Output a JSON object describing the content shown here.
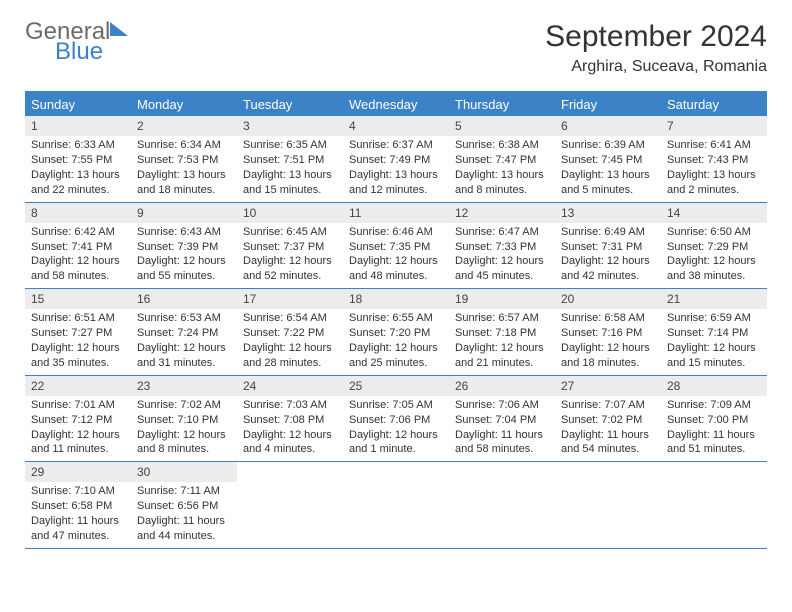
{
  "brand": {
    "general": "General",
    "blue": "Blue"
  },
  "title": "September 2024",
  "location": "Arghira, Suceava, Romania",
  "colors": {
    "accent": "#3b82c7",
    "daynum_bg": "#ececec",
    "text": "#333333",
    "bg": "#ffffff"
  },
  "dayHeaders": [
    "Sunday",
    "Monday",
    "Tuesday",
    "Wednesday",
    "Thursday",
    "Friday",
    "Saturday"
  ],
  "weeks": [
    [
      {
        "n": "1",
        "sr": "Sunrise: 6:33 AM",
        "ss": "Sunset: 7:55 PM",
        "d1": "Daylight: 13 hours",
        "d2": "and 22 minutes."
      },
      {
        "n": "2",
        "sr": "Sunrise: 6:34 AM",
        "ss": "Sunset: 7:53 PM",
        "d1": "Daylight: 13 hours",
        "d2": "and 18 minutes."
      },
      {
        "n": "3",
        "sr": "Sunrise: 6:35 AM",
        "ss": "Sunset: 7:51 PM",
        "d1": "Daylight: 13 hours",
        "d2": "and 15 minutes."
      },
      {
        "n": "4",
        "sr": "Sunrise: 6:37 AM",
        "ss": "Sunset: 7:49 PM",
        "d1": "Daylight: 13 hours",
        "d2": "and 12 minutes."
      },
      {
        "n": "5",
        "sr": "Sunrise: 6:38 AM",
        "ss": "Sunset: 7:47 PM",
        "d1": "Daylight: 13 hours",
        "d2": "and 8 minutes."
      },
      {
        "n": "6",
        "sr": "Sunrise: 6:39 AM",
        "ss": "Sunset: 7:45 PM",
        "d1": "Daylight: 13 hours",
        "d2": "and 5 minutes."
      },
      {
        "n": "7",
        "sr": "Sunrise: 6:41 AM",
        "ss": "Sunset: 7:43 PM",
        "d1": "Daylight: 13 hours",
        "d2": "and 2 minutes."
      }
    ],
    [
      {
        "n": "8",
        "sr": "Sunrise: 6:42 AM",
        "ss": "Sunset: 7:41 PM",
        "d1": "Daylight: 12 hours",
        "d2": "and 58 minutes."
      },
      {
        "n": "9",
        "sr": "Sunrise: 6:43 AM",
        "ss": "Sunset: 7:39 PM",
        "d1": "Daylight: 12 hours",
        "d2": "and 55 minutes."
      },
      {
        "n": "10",
        "sr": "Sunrise: 6:45 AM",
        "ss": "Sunset: 7:37 PM",
        "d1": "Daylight: 12 hours",
        "d2": "and 52 minutes."
      },
      {
        "n": "11",
        "sr": "Sunrise: 6:46 AM",
        "ss": "Sunset: 7:35 PM",
        "d1": "Daylight: 12 hours",
        "d2": "and 48 minutes."
      },
      {
        "n": "12",
        "sr": "Sunrise: 6:47 AM",
        "ss": "Sunset: 7:33 PM",
        "d1": "Daylight: 12 hours",
        "d2": "and 45 minutes."
      },
      {
        "n": "13",
        "sr": "Sunrise: 6:49 AM",
        "ss": "Sunset: 7:31 PM",
        "d1": "Daylight: 12 hours",
        "d2": "and 42 minutes."
      },
      {
        "n": "14",
        "sr": "Sunrise: 6:50 AM",
        "ss": "Sunset: 7:29 PM",
        "d1": "Daylight: 12 hours",
        "d2": "and 38 minutes."
      }
    ],
    [
      {
        "n": "15",
        "sr": "Sunrise: 6:51 AM",
        "ss": "Sunset: 7:27 PM",
        "d1": "Daylight: 12 hours",
        "d2": "and 35 minutes."
      },
      {
        "n": "16",
        "sr": "Sunrise: 6:53 AM",
        "ss": "Sunset: 7:24 PM",
        "d1": "Daylight: 12 hours",
        "d2": "and 31 minutes."
      },
      {
        "n": "17",
        "sr": "Sunrise: 6:54 AM",
        "ss": "Sunset: 7:22 PM",
        "d1": "Daylight: 12 hours",
        "d2": "and 28 minutes."
      },
      {
        "n": "18",
        "sr": "Sunrise: 6:55 AM",
        "ss": "Sunset: 7:20 PM",
        "d1": "Daylight: 12 hours",
        "d2": "and 25 minutes."
      },
      {
        "n": "19",
        "sr": "Sunrise: 6:57 AM",
        "ss": "Sunset: 7:18 PM",
        "d1": "Daylight: 12 hours",
        "d2": "and 21 minutes."
      },
      {
        "n": "20",
        "sr": "Sunrise: 6:58 AM",
        "ss": "Sunset: 7:16 PM",
        "d1": "Daylight: 12 hours",
        "d2": "and 18 minutes."
      },
      {
        "n": "21",
        "sr": "Sunrise: 6:59 AM",
        "ss": "Sunset: 7:14 PM",
        "d1": "Daylight: 12 hours",
        "d2": "and 15 minutes."
      }
    ],
    [
      {
        "n": "22",
        "sr": "Sunrise: 7:01 AM",
        "ss": "Sunset: 7:12 PM",
        "d1": "Daylight: 12 hours",
        "d2": "and 11 minutes."
      },
      {
        "n": "23",
        "sr": "Sunrise: 7:02 AM",
        "ss": "Sunset: 7:10 PM",
        "d1": "Daylight: 12 hours",
        "d2": "and 8 minutes."
      },
      {
        "n": "24",
        "sr": "Sunrise: 7:03 AM",
        "ss": "Sunset: 7:08 PM",
        "d1": "Daylight: 12 hours",
        "d2": "and 4 minutes."
      },
      {
        "n": "25",
        "sr": "Sunrise: 7:05 AM",
        "ss": "Sunset: 7:06 PM",
        "d1": "Daylight: 12 hours",
        "d2": "and 1 minute."
      },
      {
        "n": "26",
        "sr": "Sunrise: 7:06 AM",
        "ss": "Sunset: 7:04 PM",
        "d1": "Daylight: 11 hours",
        "d2": "and 58 minutes."
      },
      {
        "n": "27",
        "sr": "Sunrise: 7:07 AM",
        "ss": "Sunset: 7:02 PM",
        "d1": "Daylight: 11 hours",
        "d2": "and 54 minutes."
      },
      {
        "n": "28",
        "sr": "Sunrise: 7:09 AM",
        "ss": "Sunset: 7:00 PM",
        "d1": "Daylight: 11 hours",
        "d2": "and 51 minutes."
      }
    ],
    [
      {
        "n": "29",
        "sr": "Sunrise: 7:10 AM",
        "ss": "Sunset: 6:58 PM",
        "d1": "Daylight: 11 hours",
        "d2": "and 47 minutes."
      },
      {
        "n": "30",
        "sr": "Sunrise: 7:11 AM",
        "ss": "Sunset: 6:56 PM",
        "d1": "Daylight: 11 hours",
        "d2": "and 44 minutes."
      },
      null,
      null,
      null,
      null,
      null
    ]
  ]
}
